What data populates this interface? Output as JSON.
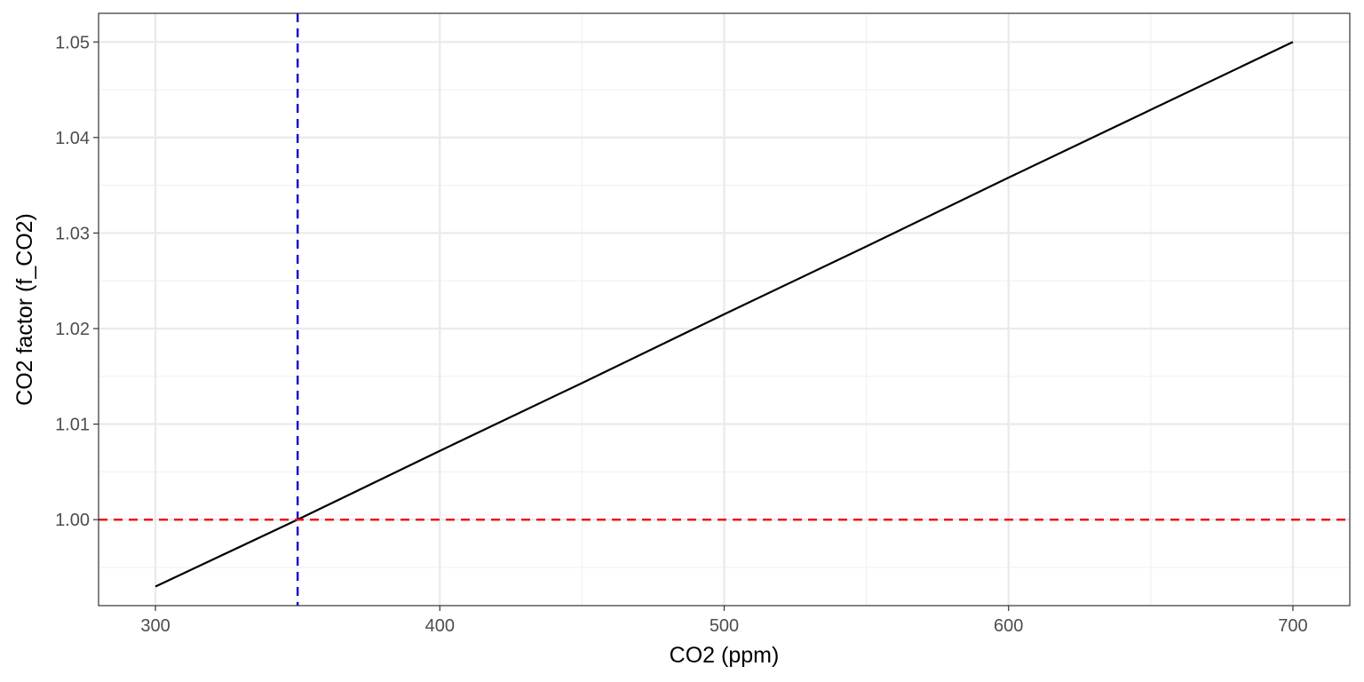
{
  "chart_data": {
    "type": "line",
    "title": "",
    "xlabel": "CO2 (ppm)",
    "ylabel": "CO2 factor (f_CO2)",
    "xlim": [
      280,
      720
    ],
    "ylim": [
      0.991,
      1.053
    ],
    "x_major_ticks": [
      300,
      400,
      500,
      600,
      700
    ],
    "x_tick_labels": [
      "300",
      "400",
      "500",
      "600",
      "700"
    ],
    "x_minor_ticks": [
      350,
      450,
      550,
      650
    ],
    "y_major_ticks": [
      1.0,
      1.01,
      1.02,
      1.03,
      1.04,
      1.05
    ],
    "y_tick_labels": [
      "1.00",
      "1.01",
      "1.02",
      "1.03",
      "1.04",
      "1.05"
    ],
    "y_minor_ticks": [
      0.995,
      1.005,
      1.015,
      1.025,
      1.035,
      1.045
    ],
    "grid": true,
    "legend": "none",
    "series": [
      {
        "x": [
          300,
          350,
          400,
          450,
          500,
          550,
          600,
          650,
          700
        ],
        "y": [
          0.993,
          1.0,
          1.0072,
          1.0143,
          1.0215,
          1.0286,
          1.0358,
          1.0429,
          1.05
        ],
        "color": "#000000"
      }
    ],
    "reference_lines": [
      {
        "orientation": "vertical",
        "x": 350,
        "color": "#0000cc",
        "style": "dashed"
      },
      {
        "orientation": "horizontal",
        "y": 1.0,
        "color": "#ee0000",
        "style": "dashed"
      }
    ],
    "colors": {
      "panel_border": "#333333",
      "major_grid": "#ebebeb",
      "minor_grid": "#f2f2f2",
      "tick_mark": "#333333"
    }
  }
}
